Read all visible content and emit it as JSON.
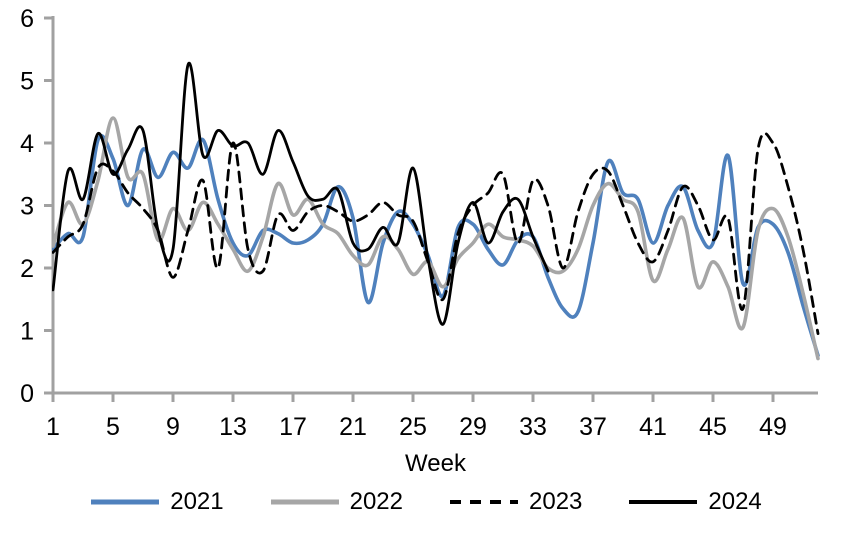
{
  "chart_data": {
    "type": "line",
    "xlabel": "Week",
    "x": [
      1,
      2,
      3,
      4,
      5,
      6,
      7,
      8,
      9,
      10,
      11,
      12,
      13,
      14,
      15,
      16,
      17,
      18,
      19,
      20,
      21,
      22,
      23,
      24,
      25,
      26,
      27,
      28,
      29,
      30,
      31,
      32,
      33,
      34,
      35,
      36,
      37,
      38,
      39,
      40,
      41,
      42,
      43,
      44,
      45,
      46,
      47,
      48,
      49,
      50,
      51,
      52
    ],
    "x_ticks": [
      1,
      5,
      9,
      13,
      17,
      21,
      25,
      29,
      33,
      37,
      41,
      45,
      49
    ],
    "y_ticks": [
      0,
      1,
      2,
      3,
      4,
      5,
      6
    ],
    "xlim": [
      1,
      52
    ],
    "ylim": [
      0,
      6
    ],
    "grid": false,
    "legend_position": "bottom",
    "axis_color": "#a1a1a1",
    "text_color": "#000000",
    "series": [
      {
        "name": "2021",
        "color": "#4f81bd",
        "dash": "solid",
        "width": 3.6,
        "values": [
          2.3,
          2.55,
          2.5,
          4.05,
          3.75,
          3.0,
          3.9,
          3.45,
          3.85,
          3.6,
          4.05,
          3.1,
          2.4,
          2.2,
          2.6,
          2.55,
          2.4,
          2.45,
          2.7,
          3.3,
          2.8,
          1.45,
          2.4,
          2.9,
          2.7,
          2.2,
          1.55,
          2.65,
          2.7,
          2.3,
          2.05,
          2.45,
          2.5,
          1.85,
          1.35,
          1.3,
          2.4,
          3.7,
          3.2,
          3.1,
          2.4,
          3.0,
          3.3,
          2.6,
          2.4,
          3.8,
          1.75,
          2.65,
          2.7,
          2.25,
          1.4,
          0.6
        ]
      },
      {
        "name": "2022",
        "color": "#a6a6a6",
        "dash": "solid",
        "width": 3.6,
        "values": [
          2.35,
          3.05,
          2.7,
          3.4,
          4.4,
          3.45,
          3.5,
          2.45,
          2.95,
          2.6,
          3.05,
          2.7,
          2.3,
          1.95,
          2.5,
          3.35,
          2.85,
          3.1,
          2.7,
          2.55,
          2.2,
          2.05,
          2.5,
          2.3,
          1.9,
          2.1,
          1.7,
          2.15,
          2.4,
          2.7,
          2.5,
          2.45,
          2.35,
          2.0,
          1.95,
          2.3,
          3.0,
          3.35,
          3.1,
          2.9,
          1.8,
          2.3,
          2.8,
          1.7,
          2.1,
          1.7,
          1.05,
          2.6,
          2.95,
          2.5,
          1.6,
          0.55
        ]
      },
      {
        "name": "2023",
        "color": "#000000",
        "dash": "dashed",
        "width": 2.8,
        "values": [
          2.25,
          2.5,
          2.7,
          3.6,
          3.55,
          3.2,
          2.95,
          2.6,
          1.85,
          2.6,
          3.4,
          2.0,
          4.0,
          2.3,
          1.95,
          2.85,
          2.6,
          2.9,
          3.0,
          2.9,
          2.75,
          2.85,
          3.05,
          2.85,
          2.75,
          2.1,
          1.5,
          2.55,
          3.0,
          3.2,
          3.5,
          2.4,
          3.4,
          3.0,
          2.0,
          2.9,
          3.5,
          3.55,
          3.0,
          2.4,
          2.1,
          2.6,
          3.3,
          3.0,
          2.45,
          2.8,
          1.35,
          3.9,
          4.0,
          3.3,
          2.3,
          0.95
        ]
      },
      {
        "name": "2024",
        "color": "#000000",
        "dash": "solid",
        "width": 2.8,
        "values": [
          1.65,
          3.55,
          3.1,
          4.15,
          3.5,
          3.9,
          4.2,
          2.6,
          2.3,
          5.25,
          3.8,
          4.2,
          3.95,
          4.0,
          3.5,
          4.2,
          3.7,
          3.15,
          3.1,
          3.25,
          2.4,
          2.3,
          2.65,
          2.4,
          3.6,
          2.15,
          1.1,
          2.4,
          3.05,
          2.4,
          2.9,
          3.1,
          2.5,
          1.95,
          null,
          null,
          null,
          null,
          null,
          null,
          null,
          null,
          null,
          null,
          null,
          null,
          null,
          null,
          null,
          null,
          null,
          null
        ]
      }
    ]
  }
}
